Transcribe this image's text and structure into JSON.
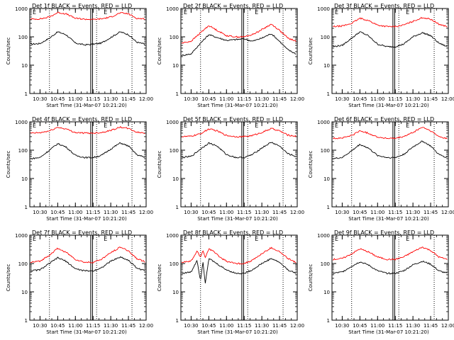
{
  "figure": {
    "ylabel": "Counts/sec",
    "xlabel": "Start Time (31-Mar-07 10:21:20)",
    "x_ticks": [
      "10:30",
      "10:45",
      "11:00",
      "11:15",
      "11:30",
      "11:45",
      "12:00"
    ],
    "y_ticks": [
      "1",
      "10",
      "100",
      "1000"
    ],
    "marker_labels": [
      "E",
      "E"
    ],
    "colors": {
      "events": "#000000",
      "lld": "#ff0000",
      "background": "#ffffff"
    }
  },
  "chart_data": [
    {
      "type": "line",
      "title": "Det 1f BLACK = Events, RED = LLD",
      "xlabel": "Start Time (31-Mar-07 10:21:20)",
      "ylabel": "Counts/sec",
      "x_range": [
        "10:21",
        "12:00"
      ],
      "ylim": [
        1,
        1000
      ],
      "yscale": "log",
      "markers": {
        "dotted": [
          "10:38",
          "11:18",
          "11:48"
        ],
        "solid": [
          "11:13"
        ]
      },
      "x": [
        "10:22",
        "10:30",
        "10:38",
        "10:45",
        "10:52",
        "11:00",
        "11:08",
        "11:15",
        "11:22",
        "11:30",
        "11:38",
        "11:45",
        "11:52",
        "11:59"
      ],
      "series": [
        {
          "name": "Events",
          "color": "#000000",
          "values": [
            55,
            58,
            90,
            150,
            120,
            60,
            52,
            55,
            60,
            95,
            150,
            120,
            65,
            55
          ]
        },
        {
          "name": "LLD",
          "color": "#ff0000",
          "values": [
            420,
            430,
            500,
            720,
            650,
            450,
            420,
            410,
            430,
            500,
            700,
            650,
            450,
            430
          ]
        }
      ]
    },
    {
      "type": "line",
      "title": "Det 2f BLACK = Events, RED = LLD",
      "xlabel": "Start Time (31-Mar-07 10:21:20)",
      "ylabel": "Counts/sec",
      "x_range": [
        "10:21",
        "12:00"
      ],
      "ylim": [
        1,
        1000
      ],
      "yscale": "log",
      "markers": {
        "dotted": [
          "10:38",
          "11:18",
          "11:48"
        ],
        "solid": [
          "11:13"
        ]
      },
      "x": [
        "10:22",
        "10:30",
        "10:38",
        "10:45",
        "10:52",
        "11:00",
        "11:08",
        "11:15",
        "11:22",
        "11:30",
        "11:38",
        "11:45",
        "11:52",
        "11:59"
      ],
      "series": [
        {
          "name": "Events",
          "color": "#000000",
          "values": [
            22,
            25,
            60,
            120,
            95,
            75,
            80,
            85,
            70,
            90,
            130,
            70,
            35,
            25
          ]
        },
        {
          "name": "LLD",
          "color": "#ff0000",
          "values": [
            60,
            70,
            140,
            250,
            170,
            110,
            100,
            100,
            120,
            180,
            280,
            170,
            90,
            70
          ]
        }
      ]
    },
    {
      "type": "line",
      "title": "Det 3f BLACK = Events, RED = LLD",
      "xlabel": "Start Time (31-Mar-07 10:21:20)",
      "ylabel": "Counts/sec",
      "x_range": [
        "10:21",
        "12:00"
      ],
      "ylim": [
        1,
        1000
      ],
      "yscale": "log",
      "markers": {
        "dotted": [
          "10:38",
          "11:18",
          "11:48"
        ],
        "solid": [
          "11:13"
        ]
      },
      "x": [
        "10:22",
        "10:30",
        "10:38",
        "10:45",
        "10:52",
        "11:00",
        "11:08",
        "11:15",
        "11:22",
        "11:30",
        "11:38",
        "11:45",
        "11:52",
        "11:59"
      ],
      "series": [
        {
          "name": "Events",
          "color": "#000000",
          "values": [
            45,
            50,
            90,
            150,
            110,
            55,
            45,
            45,
            55,
            100,
            140,
            110,
            60,
            45
          ]
        },
        {
          "name": "LLD",
          "color": "#ff0000",
          "values": [
            230,
            240,
            300,
            450,
            380,
            260,
            230,
            230,
            260,
            350,
            480,
            420,
            280,
            230
          ]
        }
      ]
    },
    {
      "type": "line",
      "title": "Det 4f BLACK = Events, RED = LLD",
      "xlabel": "Start Time (31-Mar-07 10:21:20)",
      "ylabel": "Counts/sec",
      "x_range": [
        "10:21",
        "12:00"
      ],
      "ylim": [
        1,
        1000
      ],
      "yscale": "log",
      "markers": {
        "dotted": [
          "10:38",
          "11:18",
          "11:48"
        ],
        "solid": [
          "11:13"
        ]
      },
      "x": [
        "10:22",
        "10:30",
        "10:38",
        "10:45",
        "10:52",
        "11:00",
        "11:08",
        "11:15",
        "11:22",
        "11:30",
        "11:38",
        "11:45",
        "11:52",
        "11:59"
      ],
      "series": [
        {
          "name": "Events",
          "color": "#000000",
          "values": [
            50,
            55,
            100,
            170,
            130,
            65,
            55,
            55,
            65,
            110,
            180,
            140,
            70,
            55
          ]
        },
        {
          "name": "LLD",
          "color": "#ff0000",
          "values": [
            400,
            410,
            480,
            640,
            560,
            420,
            400,
            400,
            420,
            500,
            650,
            580,
            430,
            400
          ]
        }
      ]
    },
    {
      "type": "line",
      "title": "Det 5f BLACK = Events, RED = LLD",
      "xlabel": "Start Time (31-Mar-07 10:21:20)",
      "ylabel": "Counts/sec",
      "x_range": [
        "10:21",
        "12:00"
      ],
      "ylim": [
        1,
        1000
      ],
      "yscale": "log",
      "markers": {
        "dotted": [
          "10:38",
          "11:18",
          "11:48"
        ],
        "solid": [
          "11:13"
        ]
      },
      "x": [
        "10:22",
        "10:30",
        "10:38",
        "10:45",
        "10:52",
        "11:00",
        "11:08",
        "11:15",
        "11:22",
        "11:30",
        "11:38",
        "11:45",
        "11:52",
        "11:59"
      ],
      "series": [
        {
          "name": "Events",
          "color": "#000000",
          "values": [
            55,
            60,
            110,
            180,
            140,
            70,
            55,
            55,
            70,
            120,
            190,
            140,
            75,
            60
          ]
        },
        {
          "name": "LLD",
          "color": "#ff0000",
          "values": [
            300,
            310,
            380,
            560,
            480,
            330,
            300,
            300,
            330,
            420,
            580,
            480,
            340,
            310
          ]
        }
      ]
    },
    {
      "type": "line",
      "title": "Det 6f BLACK = Events, RED = LLD",
      "xlabel": "Start Time (31-Mar-07 10:21:20)",
      "ylabel": "Counts/sec",
      "x_range": [
        "10:21",
        "12:00"
      ],
      "ylim": [
        1,
        1000
      ],
      "yscale": "log",
      "markers": {
        "dotted": [
          "10:38",
          "11:18",
          "11:48"
        ],
        "solid": [
          "11:13"
        ]
      },
      "x": [
        "10:22",
        "10:30",
        "10:38",
        "10:45",
        "10:52",
        "11:00",
        "11:08",
        "11:15",
        "11:22",
        "11:30",
        "11:38",
        "11:45",
        "11:52",
        "11:59"
      ],
      "series": [
        {
          "name": "Events",
          "color": "#000000",
          "values": [
            50,
            55,
            95,
            160,
            120,
            65,
            55,
            55,
            70,
            130,
            210,
            140,
            70,
            55
          ]
        },
        {
          "name": "LLD",
          "color": "#ff0000",
          "values": [
            260,
            270,
            330,
            480,
            400,
            290,
            260,
            260,
            300,
            420,
            650,
            480,
            300,
            260
          ]
        }
      ]
    },
    {
      "type": "line",
      "title": "Det 7f BLACK = Events, RED = LLD",
      "xlabel": "Start Time (31-Mar-07 10:21:20)",
      "ylabel": "Counts/sec",
      "x_range": [
        "10:21",
        "12:00"
      ],
      "ylim": [
        1,
        1000
      ],
      "yscale": "log",
      "markers": {
        "dotted": [
          "10:38",
          "11:18",
          "11:48"
        ],
        "solid": [
          "11:13"
        ]
      },
      "x": [
        "10:22",
        "10:30",
        "10:38",
        "10:45",
        "10:52",
        "11:00",
        "11:08",
        "11:15",
        "11:22",
        "11:30",
        "11:38",
        "11:45",
        "11:52",
        "11:59"
      ],
      "series": [
        {
          "name": "Events",
          "color": "#000000",
          "values": [
            55,
            60,
            100,
            160,
            120,
            65,
            55,
            55,
            70,
            120,
            170,
            130,
            70,
            55
          ]
        },
        {
          "name": "LLD",
          "color": "#ff0000",
          "values": [
            110,
            120,
            200,
            340,
            250,
            140,
            110,
            110,
            140,
            240,
            380,
            280,
            150,
            115
          ]
        }
      ]
    },
    {
      "type": "line",
      "title": "Det 8f BLACK = Events, RED = LLD",
      "xlabel": "Start Time (31-Mar-07 10:21:20)",
      "ylabel": "Counts/sec",
      "x_range": [
        "10:21",
        "12:00"
      ],
      "ylim": [
        1,
        1000
      ],
      "yscale": "log",
      "markers": {
        "dotted": [
          "10:38",
          "11:18",
          "11:48"
        ],
        "solid": [
          "11:13"
        ]
      },
      "x": [
        "10:22",
        "10:30",
        "10:35",
        "10:38",
        "10:40",
        "10:42",
        "10:45",
        "10:50",
        "10:55",
        "11:00",
        "11:08",
        "11:15",
        "11:22",
        "11:30",
        "11:38",
        "11:45",
        "11:52",
        "11:59"
      ],
      "series": [
        {
          "name": "Events",
          "color": "#000000",
          "values": [
            45,
            50,
            130,
            25,
            120,
            20,
            150,
            110,
            80,
            60,
            45,
            45,
            60,
            100,
            150,
            110,
            60,
            45
          ]
        },
        {
          "name": "LLD",
          "color": "#ff0000",
          "values": [
            110,
            120,
            270,
            170,
            290,
            160,
            330,
            250,
            160,
            120,
            100,
            100,
            130,
            220,
            360,
            260,
            150,
            110
          ]
        }
      ]
    },
    {
      "type": "line",
      "title": "Det 9f BLACK = Events, RED = LLD",
      "xlabel": "Start Time (31-Mar-07 10:21:20)",
      "ylabel": "Counts/sec",
      "x_range": [
        "10:21",
        "12:00"
      ],
      "ylim": [
        1,
        1000
      ],
      "yscale": "log",
      "markers": {
        "dotted": [
          "10:38",
          "11:18",
          "11:48"
        ],
        "solid": [
          "11:13"
        ]
      },
      "x": [
        "10:22",
        "10:30",
        "10:38",
        "10:45",
        "10:52",
        "11:00",
        "11:08",
        "11:15",
        "11:22",
        "11:30",
        "11:38",
        "11:45",
        "11:52",
        "11:59"
      ],
      "series": [
        {
          "name": "Events",
          "color": "#000000",
          "values": [
            45,
            50,
            80,
            115,
            90,
            55,
            45,
            45,
            55,
            90,
            120,
            95,
            55,
            45
          ]
        },
        {
          "name": "LLD",
          "color": "#ff0000",
          "values": [
            140,
            150,
            220,
            330,
            260,
            170,
            140,
            140,
            170,
            260,
            380,
            290,
            170,
            140
          ]
        }
      ]
    }
  ]
}
